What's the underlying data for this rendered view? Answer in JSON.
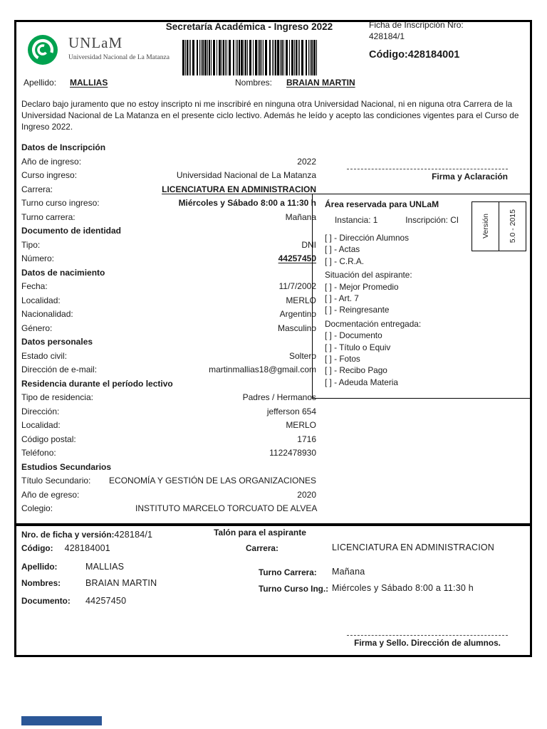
{
  "header": {
    "title": "Secretaría Académica - Ingreso  2022",
    "ficha_label": "Ficha de Inscripción Nro:",
    "ficha_number": "428184/1",
    "codigo": "Código:428184001",
    "logo_acronym": "UNLaM",
    "logo_subtitle": "Universidad Nacional de La Matanza",
    "barcode_value": "428184001"
  },
  "identity": {
    "apellido_label": "Apellido:",
    "apellido": "MALLIAS",
    "nombres_label": "Nombres:",
    "nombres": "BRAIAN MARTIN"
  },
  "declaration": "Declaro bajo juramento que no estoy inscripto ni me inscribiré en ninguna otra Universidad Nacional, ni en niguna otra Carrera de la Universidad Nacional de La Matanza en el presente ciclo lectivo. Además he leído y acepto las condiciones vigentes para el Curso de Ingreso 2022.",
  "left_col": {
    "sections": [
      {
        "heading": "Datos de Inscripción",
        "rows": [
          {
            "label": "Año de ingreso:",
            "value": "2022"
          },
          {
            "label": "Curso ingreso:",
            "value": "Universidad Nacional de La Matanza"
          },
          {
            "label": "Carrera:",
            "value": "LICENCIATURA EN ADMINISTRACION"
          },
          {
            "label": "Turno curso ingreso:",
            "value": "Miércoles y Sábado 8:00 a 11:30 h"
          },
          {
            "label": "Turno carrera:",
            "value": "Mañana"
          }
        ]
      },
      {
        "heading": "Documento de identidad",
        "rows": [
          {
            "label": "Tipo:",
            "value": "DNI"
          },
          {
            "label": "Número:",
            "value": "44257450"
          }
        ]
      },
      {
        "heading": "Datos de nacimiento",
        "rows": [
          {
            "label": "Fecha:",
            "value": "11/7/2002"
          },
          {
            "label": "Localidad:",
            "value": "MERLO"
          },
          {
            "label": "Nacionalidad:",
            "value": "Argentino"
          },
          {
            "label": "Género:",
            "value": "Masculino"
          }
        ]
      },
      {
        "heading": "Datos personales",
        "rows": [
          {
            "label": "Estado civil:",
            "value": "Soltero"
          },
          {
            "label": "Dirección de e-mail:",
            "value": "martinmallias18@gmail.com"
          }
        ]
      },
      {
        "heading": "Residencia durante el período lectivo",
        "rows": [
          {
            "label": "Tipo de residencia:",
            "value": "Padres / Hermanos"
          },
          {
            "label": "Dirección:",
            "value": "jefferson  654"
          },
          {
            "label": "Localidad:",
            "value": "MERLO"
          },
          {
            "label": "Código postal:",
            "value": "1716"
          },
          {
            "label": "Teléfono:",
            "value": "1122478930"
          }
        ]
      },
      {
        "heading": "Estudios Secundarios",
        "rows": [
          {
            "label": "Título Secundario:",
            "value": "ECONOMÍA Y GESTIÓN DE LAS ORGANIZACIONES"
          },
          {
            "label": "Año de egreso:",
            "value": "2020"
          },
          {
            "label": "Colegio:",
            "value": "INSTITUTO MARCELO TORCUATO DE ALVEAR"
          }
        ]
      }
    ]
  },
  "firma_aclaracion": "Firma y Aclaración",
  "unlam_area": {
    "heading": "Área reservada para UNLaM",
    "instancia": "Instancia: 1",
    "inscripcion": "Inscripción: CI",
    "groups": [
      {
        "items": [
          "[ ] - Dirección Alumnos",
          "[ ] - Actas",
          "[ ] - C.R.A."
        ]
      },
      {
        "title": "Situación del aspirante:",
        "items": [
          "[ ] - Mejor Promedio",
          "[ ] - Art. 7",
          "[ ] - Reingresante"
        ]
      },
      {
        "title": "Docmentación entregada:",
        "items": [
          "[ ] - Documento",
          "[ ] - Título o Equiv",
          "[ ] - Fotos",
          "[ ] - Recibo Pago",
          "[ ] - Adeuda Materia"
        ]
      }
    ],
    "version_label": "Versión",
    "version_value": "5.0 - 2015"
  },
  "talon": {
    "title": "Talón para el aspirante",
    "nro_label": "Nro. de ficha y versión:",
    "nro_value": "428184/1",
    "codigo_label": "Código:",
    "codigo_value": "428184001",
    "apellido_label": "Apellido:",
    "apellido": "MALLIAS",
    "nombres_label": "Nombres:",
    "nombres": "BRAIAN MARTIN",
    "documento_label": "Documento:",
    "documento": "44257450",
    "carrera_label": "Carrera:",
    "carrera": "LICENCIATURA EN ADMINISTRACION",
    "turno_carrera_label": "Turno Carrera:",
    "turno_carrera": "Mañana",
    "turno_curso_label": "Turno Curso Ing.:",
    "turno_curso": "Miércoles y Sábado 8:00 a 11:30 h",
    "firma_sello": "Firma y Sello. Dirección de alumnos."
  },
  "colors": {
    "logo_green": "#00a24f",
    "footer_bar_blue": "#2b5797"
  }
}
